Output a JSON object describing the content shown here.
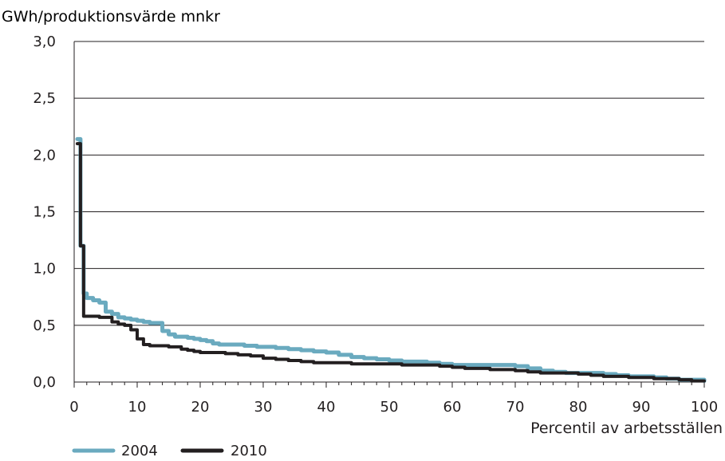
{
  "chart_data": {
    "type": "line",
    "ylabel": "GWh/produktionsvärde mnkr",
    "xlabel": "Percentil av arbetsställen",
    "xlim": [
      0,
      100
    ],
    "ylim": [
      0,
      3.0
    ],
    "x_ticks": [
      0,
      10,
      20,
      30,
      40,
      50,
      60,
      70,
      80,
      90,
      100
    ],
    "x_tick_labels": [
      "0",
      "10",
      "20",
      "30",
      "40",
      "50",
      "60",
      "70",
      "80",
      "90",
      "100"
    ],
    "y_ticks": [
      0,
      0.5,
      1.0,
      1.5,
      2.0,
      2.5,
      3.0
    ],
    "y_tick_labels": [
      "0,0",
      "0,5",
      "1,0",
      "1,5",
      "2,0",
      "2,5",
      "3,0"
    ],
    "grid": "horizontal",
    "legend_position": "bottom-left",
    "series": [
      {
        "name": "2004",
        "color": "#6aaabf",
        "x": [
          0.5,
          1,
          1.5,
          2,
          3,
          4,
          5,
          6,
          7,
          8,
          9,
          10,
          11,
          12,
          13,
          14,
          15,
          16,
          17,
          18,
          19,
          20,
          21,
          22,
          23,
          25,
          27,
          29,
          30,
          32,
          34,
          36,
          38,
          40,
          42,
          44,
          46,
          48,
          50,
          52,
          54,
          56,
          58,
          60,
          62,
          64,
          66,
          68,
          70,
          72,
          74,
          76,
          78,
          80,
          82,
          84,
          86,
          88,
          90,
          92,
          94,
          96,
          98,
          100
        ],
        "y": [
          2.14,
          1.2,
          0.78,
          0.74,
          0.72,
          0.7,
          0.62,
          0.6,
          0.57,
          0.56,
          0.55,
          0.54,
          0.53,
          0.52,
          0.52,
          0.45,
          0.42,
          0.4,
          0.4,
          0.39,
          0.38,
          0.37,
          0.36,
          0.34,
          0.33,
          0.33,
          0.32,
          0.31,
          0.31,
          0.3,
          0.29,
          0.28,
          0.27,
          0.26,
          0.24,
          0.22,
          0.21,
          0.2,
          0.19,
          0.18,
          0.18,
          0.17,
          0.16,
          0.15,
          0.15,
          0.15,
          0.15,
          0.15,
          0.14,
          0.12,
          0.1,
          0.09,
          0.08,
          0.08,
          0.08,
          0.07,
          0.06,
          0.05,
          0.05,
          0.04,
          0.03,
          0.02,
          0.02,
          0.01
        ]
      },
      {
        "name": "2010",
        "color": "#231f20",
        "x": [
          0.5,
          1,
          1.5,
          2,
          3,
          4,
          5,
          6,
          7,
          8,
          9,
          10,
          11,
          12,
          13,
          14,
          15,
          16,
          17,
          18,
          19,
          20,
          22,
          24,
          26,
          28,
          30,
          32,
          34,
          36,
          38,
          40,
          44,
          48,
          50,
          52,
          54,
          56,
          58,
          60,
          62,
          64,
          66,
          68,
          70,
          72,
          74,
          76,
          78,
          80,
          82,
          84,
          86,
          88,
          90,
          92,
          94,
          96,
          98,
          100
        ],
        "y": [
          2.1,
          1.2,
          0.58,
          0.58,
          0.58,
          0.57,
          0.57,
          0.53,
          0.51,
          0.5,
          0.46,
          0.38,
          0.33,
          0.32,
          0.32,
          0.32,
          0.31,
          0.31,
          0.29,
          0.28,
          0.27,
          0.26,
          0.26,
          0.25,
          0.24,
          0.23,
          0.21,
          0.2,
          0.19,
          0.18,
          0.17,
          0.17,
          0.16,
          0.16,
          0.16,
          0.15,
          0.15,
          0.15,
          0.14,
          0.13,
          0.12,
          0.12,
          0.11,
          0.11,
          0.1,
          0.09,
          0.08,
          0.08,
          0.08,
          0.07,
          0.06,
          0.05,
          0.05,
          0.04,
          0.04,
          0.03,
          0.03,
          0.02,
          0.01,
          0.01
        ]
      }
    ]
  }
}
